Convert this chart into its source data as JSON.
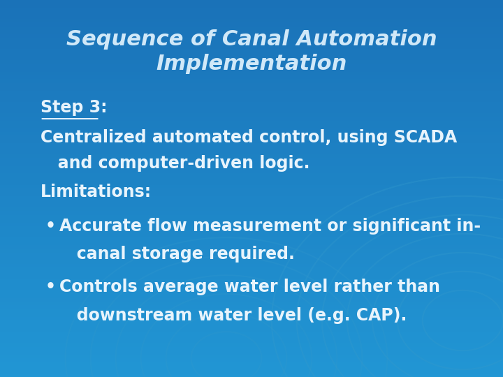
{
  "title_line1": "Sequence of Canal Automation",
  "title_line2": "Implementation",
  "step_label": "Step 3:",
  "step_text_line1": "Centralized automated control, using SCADA",
  "step_text_line2": "   and computer-driven logic.",
  "limitations_label": "Limitations:",
  "bullet1_line1": "Accurate flow measurement or significant in-",
  "bullet1_line2": "   canal storage required.",
  "bullet2_line1": "Controls average water level rather than",
  "bullet2_line2": "   downstream water level (e.g. CAP).",
  "bg_color_top": "#1a72b8",
  "bg_color_bottom": "#2196d4",
  "title_color": "#d0e8f8",
  "text_color": "#e8f4fc",
  "circle_color": "#3399cc",
  "title_fontsize": 22,
  "body_fontsize": 17
}
